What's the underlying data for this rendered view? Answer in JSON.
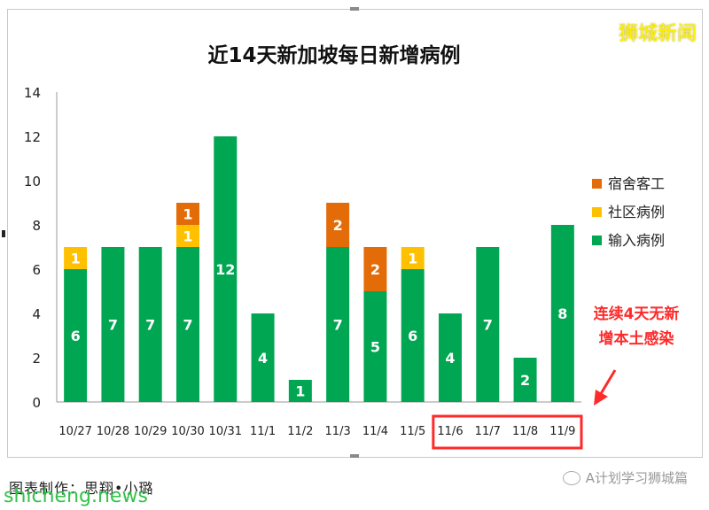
{
  "watermark_top": "狮城新闻",
  "watermark_bottom": "shicheng.news",
  "caption": "图表制作：思翔•小璐",
  "wechat_account": "A计划学习狮城篇",
  "annotation": {
    "text_line1": "连续4天无新",
    "text_line2": "增本土感染",
    "color": "#ff2a2a"
  },
  "chart_data": {
    "type": "bar",
    "stacked": true,
    "title": "近14天新加坡每日新增病例",
    "categories": [
      "10/27",
      "10/28",
      "10/29",
      "10/30",
      "10/31",
      "11/1",
      "11/2",
      "11/3",
      "11/4",
      "11/5",
      "11/6",
      "11/7",
      "11/8",
      "11/9"
    ],
    "series": [
      {
        "name": "输入病例",
        "color": "#00a651",
        "values": [
          6,
          7,
          7,
          7,
          12,
          4,
          1,
          7,
          5,
          6,
          4,
          7,
          2,
          8
        ]
      },
      {
        "name": "社区病例",
        "color": "#ffc000",
        "values": [
          1,
          0,
          0,
          1,
          0,
          0,
          0,
          0,
          0,
          1,
          0,
          0,
          0,
          0
        ]
      },
      {
        "name": "宿舍客工",
        "color": "#e36c09",
        "values": [
          0,
          0,
          0,
          1,
          0,
          0,
          0,
          2,
          2,
          0,
          0,
          0,
          0,
          0
        ]
      }
    ],
    "legend_order": [
      "宿舍客工",
      "社区病例",
      "输入病例"
    ],
    "ylim": [
      0,
      14
    ],
    "yticks": [
      0,
      2,
      4,
      6,
      8,
      10,
      12,
      14
    ],
    "grid": false,
    "legend_position": "right",
    "highlighted_categories": [
      "11/6",
      "11/7",
      "11/8",
      "11/9"
    ]
  }
}
